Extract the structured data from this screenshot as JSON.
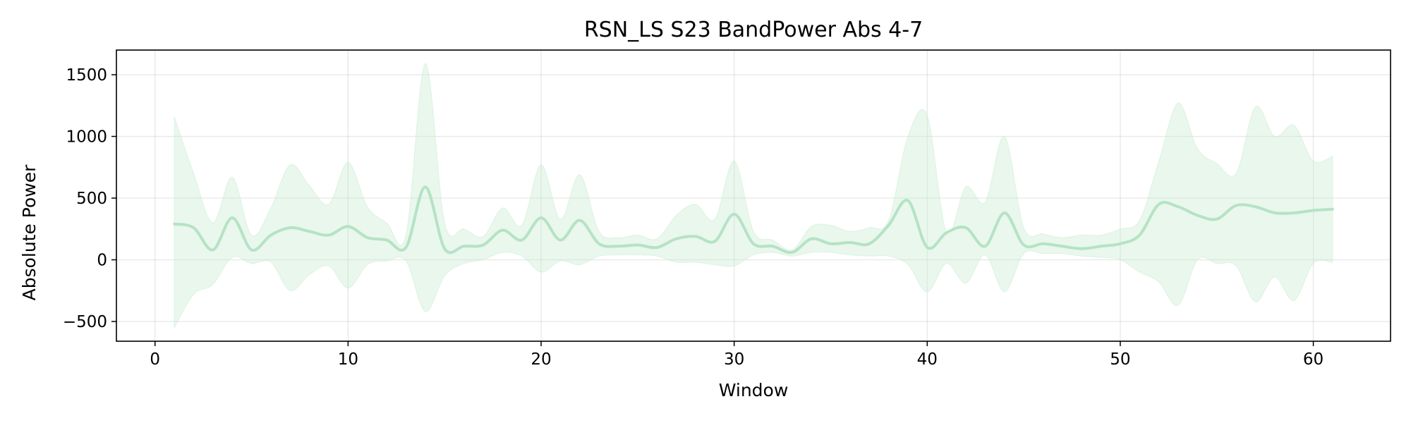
{
  "chart_data": {
    "type": "line",
    "title": "RSN_LS S23 BandPower Abs 4-7",
    "xlabel": "Window",
    "ylabel": "Absolute Power",
    "xlim": [
      -2,
      64
    ],
    "ylim": [
      -660,
      1700
    ],
    "xticks": [
      0,
      10,
      20,
      30,
      40,
      50,
      60
    ],
    "yticks": [
      -500,
      0,
      500,
      1000,
      1500
    ],
    "ytick_labels": [
      "−500",
      "0",
      "500",
      "1000",
      "1500"
    ],
    "grid": true,
    "legend": false,
    "colors": {
      "line": "#b5e3c4",
      "band": "#c8ebd2"
    },
    "series": [
      {
        "x": [
          1,
          2,
          3,
          4,
          5,
          6,
          7,
          8,
          9,
          10,
          11,
          12,
          13,
          14,
          15,
          16,
          17,
          18,
          19,
          20,
          21,
          22,
          23,
          24,
          25,
          26,
          27,
          28,
          29,
          30,
          31,
          32,
          33,
          34,
          35,
          36,
          37,
          38,
          39,
          40,
          41,
          42,
          43,
          44,
          45,
          46,
          47,
          48,
          49,
          50,
          51,
          52,
          53,
          54,
          55,
          56,
          57,
          58,
          59,
          60,
          61
        ],
        "mean": [
          290,
          260,
          80,
          340,
          80,
          200,
          260,
          230,
          200,
          270,
          180,
          160,
          100,
          590,
          90,
          110,
          120,
          240,
          160,
          340,
          160,
          320,
          130,
          110,
          120,
          100,
          170,
          190,
          150,
          370,
          130,
          110,
          60,
          170,
          130,
          140,
          130,
          280,
          480,
          100,
          220,
          260,
          110,
          380,
          120,
          130,
          110,
          90,
          110,
          130,
          200,
          450,
          430,
          360,
          330,
          440,
          430,
          380,
          380,
          400,
          410
        ],
        "upper": [
          1160,
          700,
          300,
          670,
          200,
          420,
          770,
          600,
          450,
          790,
          430,
          300,
          200,
          1590,
          300,
          250,
          190,
          420,
          280,
          770,
          330,
          690,
          230,
          180,
          200,
          170,
          360,
          450,
          330,
          800,
          230,
          160,
          80,
          270,
          280,
          230,
          260,
          320,
          1000,
          1170,
          220,
          590,
          470,
          1000,
          260,
          210,
          180,
          200,
          200,
          250,
          320,
          800,
          1270,
          900,
          780,
          700,
          1240,
          1000,
          1090,
          800,
          840
        ],
        "lower": [
          -550,
          -280,
          -200,
          20,
          -30,
          -20,
          -250,
          -120,
          -50,
          -230,
          -40,
          -10,
          -10,
          -420,
          -130,
          -30,
          0,
          60,
          30,
          -100,
          -10,
          -40,
          30,
          40,
          40,
          30,
          -20,
          -20,
          -40,
          -50,
          40,
          60,
          30,
          60,
          60,
          40,
          30,
          30,
          -40,
          -260,
          -30,
          -190,
          40,
          -260,
          50,
          50,
          50,
          30,
          20,
          0,
          -100,
          -180,
          -370,
          0,
          -30,
          -50,
          -340,
          -140,
          -330,
          -30,
          -20
        ]
      }
    ]
  }
}
